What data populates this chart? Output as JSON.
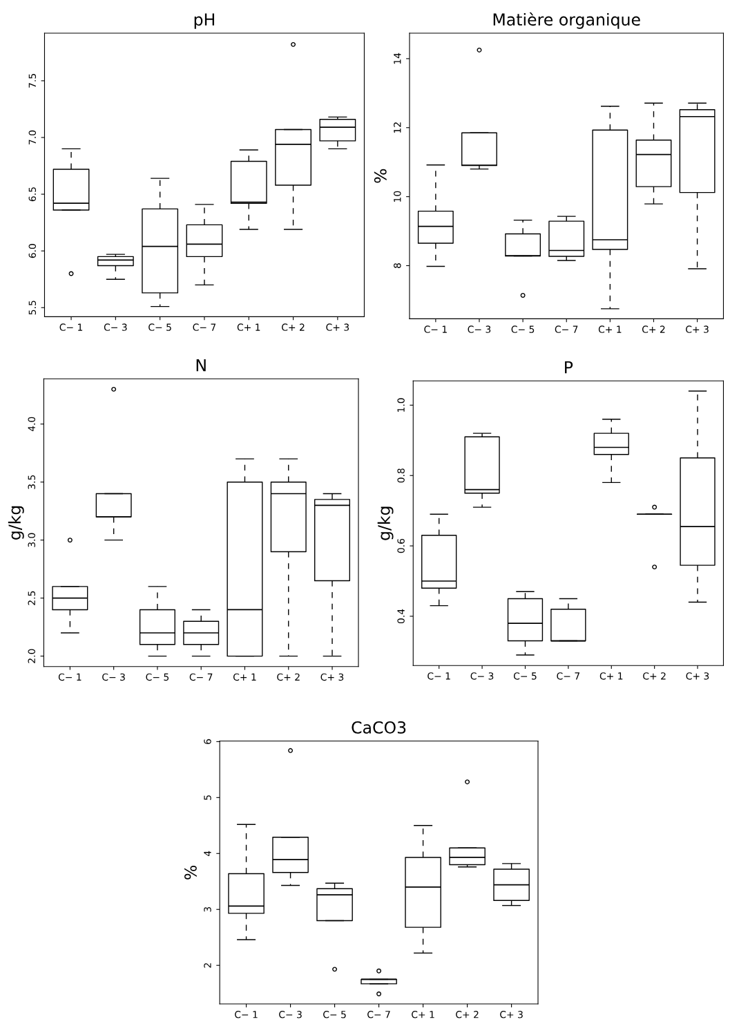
{
  "chart_data": [
    {
      "type": "box",
      "title": "pH",
      "categories": [
        "C− 1",
        "C− 3",
        "C− 5",
        "C− 7",
        "C+ 1",
        "C+ 2",
        "C+ 3"
      ],
      "ylim": [
        5.42,
        7.92
      ],
      "yticks": [
        {
          "value": 5.5,
          "label": "5.5"
        },
        {
          "value": 6.0,
          "label": "6.0"
        },
        {
          "value": 6.5,
          "label": "6.5"
        },
        {
          "value": 7.0,
          "label": "7.0"
        },
        {
          "value": 7.5,
          "label": "7.5"
        }
      ],
      "boxes": [
        {
          "low": 6.36,
          "q1": 6.36,
          "median": 6.42,
          "q3": 6.72,
          "high": 6.9,
          "outliers": [
            5.8
          ]
        },
        {
          "low": 5.75,
          "q1": 5.87,
          "median": 5.92,
          "q3": 5.95,
          "high": 5.97
        },
        {
          "low": 5.51,
          "q1": 5.63,
          "median": 6.04,
          "q3": 6.37,
          "high": 6.64
        },
        {
          "low": 5.7,
          "q1": 5.95,
          "median": 6.06,
          "q3": 6.23,
          "high": 6.41
        },
        {
          "low": 6.19,
          "q1": 6.42,
          "median": 6.43,
          "q3": 6.79,
          "high": 6.89
        },
        {
          "low": 6.19,
          "q1": 6.58,
          "median": 6.94,
          "q3": 7.07,
          "high": 7.07,
          "outliers": [
            7.82
          ]
        },
        {
          "low": 6.9,
          "q1": 6.97,
          "median": 7.09,
          "q3": 7.16,
          "high": 7.18
        }
      ]
    },
    {
      "type": "box",
      "title": "Matière organique",
      "ylabel": "%",
      "categories": [
        "C− 1",
        "C− 3",
        "C− 5",
        "C− 7",
        "C+ 1",
        "C+ 2",
        "C+ 3"
      ],
      "ylim": [
        6.46,
        14.74
      ],
      "yticks": [
        8,
        10,
        12,
        14
      ],
      "boxes": [
        {
          "low": 7.98,
          "q1": 8.65,
          "median": 9.14,
          "q3": 9.58,
          "high": 10.92
        },
        {
          "low": 10.8,
          "q1": 10.9,
          "median": 10.91,
          "q3": 11.85,
          "high": 11.85,
          "outliers": [
            14.25
          ]
        },
        {
          "low": 8.28,
          "q1": 8.28,
          "median": 8.29,
          "q3": 8.92,
          "high": 9.32,
          "outliers": [
            7.14
          ]
        },
        {
          "low": 8.15,
          "q1": 8.27,
          "median": 8.44,
          "q3": 9.29,
          "high": 9.43
        },
        {
          "low": 6.75,
          "q1": 8.47,
          "median": 8.75,
          "q3": 11.93,
          "high": 12.62
        },
        {
          "low": 9.79,
          "q1": 10.29,
          "median": 11.22,
          "q3": 11.64,
          "high": 12.71
        },
        {
          "low": 7.91,
          "q1": 10.12,
          "median": 12.32,
          "q3": 12.52,
          "high": 12.71
        }
      ]
    },
    {
      "type": "box",
      "title": "N",
      "ylabel": "g/kg",
      "categories": [
        "C− 1",
        "C− 3",
        "C− 5",
        "C− 7",
        "C+ 1",
        "C+ 2",
        "C+ 3"
      ],
      "ylim": [
        1.91,
        4.39
      ],
      "yticks": [
        {
          "value": 2.0,
          "label": "2.0"
        },
        {
          "value": 2.5,
          "label": "2.5"
        },
        {
          "value": 3.0,
          "label": "3.0"
        },
        {
          "value": 3.5,
          "label": "3.5"
        },
        {
          "value": 4.0,
          "label": "4.0"
        }
      ],
      "boxes": [
        {
          "low": 2.2,
          "q1": 2.4,
          "median": 2.5,
          "q3": 2.6,
          "high": 2.6,
          "outliers": [
            3.0
          ]
        },
        {
          "low": 3.0,
          "q1": 3.2,
          "median": 3.2,
          "q3": 3.4,
          "high": 3.4,
          "outliers": [
            4.3
          ]
        },
        {
          "low": 2.0,
          "q1": 2.1,
          "median": 2.2,
          "q3": 2.4,
          "high": 2.6
        },
        {
          "low": 2.0,
          "q1": 2.1,
          "median": 2.2,
          "q3": 2.3,
          "high": 2.4
        },
        {
          "low": 2.0,
          "q1": 2.0,
          "median": 2.4,
          "q3": 3.5,
          "high": 3.7
        },
        {
          "low": 2.0,
          "q1": 2.9,
          "median": 3.4,
          "q3": 3.5,
          "high": 3.7
        },
        {
          "low": 2.0,
          "q1": 2.65,
          "median": 3.3,
          "q3": 3.35,
          "high": 3.4
        }
      ]
    },
    {
      "type": "box",
      "title": "P",
      "ylabel": "g/kg",
      "categories": [
        "C− 1",
        "C− 3",
        "C− 5",
        "C− 7",
        "C+ 1",
        "C+ 2",
        "C+ 3"
      ],
      "ylim": [
        0.26,
        1.069
      ],
      "yticks": [
        {
          "value": 0.4,
          "label": "0.4"
        },
        {
          "value": 0.6,
          "label": "0.6"
        },
        {
          "value": 0.8,
          "label": "0.8"
        },
        {
          "value": 1.0,
          "label": "1.0"
        }
      ],
      "boxes": [
        {
          "low": 0.43,
          "q1": 0.48,
          "median": 0.5,
          "q3": 0.63,
          "high": 0.69
        },
        {
          "low": 0.71,
          "q1": 0.75,
          "median": 0.76,
          "q3": 0.91,
          "high": 0.92
        },
        {
          "low": 0.29,
          "q1": 0.33,
          "median": 0.38,
          "q3": 0.45,
          "high": 0.47
        },
        {
          "low": 0.33,
          "q1": 0.33,
          "median": 0.33,
          "q3": 0.42,
          "high": 0.45
        },
        {
          "low": 0.78,
          "q1": 0.86,
          "median": 0.88,
          "q3": 0.92,
          "high": 0.96
        },
        {
          "low": 0.69,
          "q1": 0.69,
          "median": 0.69,
          "q3": 0.69,
          "high": 0.69,
          "outliers": [
            0.71,
            0.54
          ]
        },
        {
          "low": 0.44,
          "q1": 0.545,
          "median": 0.655,
          "q3": 0.85,
          "high": 1.04
        }
      ]
    },
    {
      "type": "box",
      "title": "CaCO3",
      "ylabel": "%",
      "categories": [
        "C− 1",
        "C− 3",
        "C− 5",
        "C− 7",
        "C+ 1",
        "C+ 2",
        "C+ 3"
      ],
      "ylim": [
        1.31,
        6.01
      ],
      "yticks": [
        2,
        3,
        4,
        5,
        6
      ],
      "boxes": [
        {
          "low": 2.46,
          "q1": 2.93,
          "median": 3.06,
          "q3": 3.64,
          "high": 4.52
        },
        {
          "low": 3.43,
          "q1": 3.66,
          "median": 3.89,
          "q3": 4.29,
          "high": 4.29,
          "outliers": [
            5.84
          ]
        },
        {
          "low": 2.8,
          "q1": 2.8,
          "median": 3.26,
          "q3": 3.37,
          "high": 3.47,
          "outliers": [
            1.93
          ]
        },
        {
          "low": 1.67,
          "q1": 1.67,
          "median": 1.75,
          "q3": 1.75,
          "high": 1.75,
          "outliers": [
            1.9,
            1.49
          ]
        },
        {
          "low": 2.22,
          "q1": 2.68,
          "median": 3.4,
          "q3": 3.93,
          "high": 4.5
        },
        {
          "low": 3.76,
          "q1": 3.8,
          "median": 3.93,
          "q3": 4.1,
          "high": 4.1,
          "outliers": [
            5.28
          ]
        },
        {
          "low": 3.07,
          "q1": 3.16,
          "median": 3.44,
          "q3": 3.72,
          "high": 3.82
        }
      ]
    }
  ]
}
